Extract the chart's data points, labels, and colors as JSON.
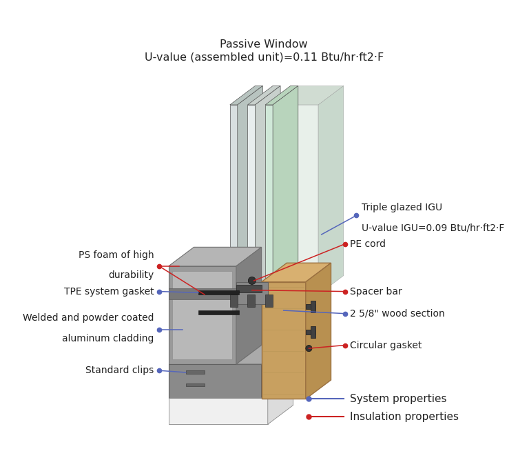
{
  "title_line1": "Passive Window",
  "title_line2": "U-value (assembled unit)=0.11 Btu/hr·ft2·F",
  "title_fontsize": 11.5,
  "fig_bg": "#ffffff",
  "blue_color": "#5566bb",
  "red_color": "#cc2222",
  "legend": [
    {
      "label": "System properties",
      "color": "#5566bb"
    },
    {
      "label": "Insulation properties",
      "color": "#cc2222"
    }
  ]
}
